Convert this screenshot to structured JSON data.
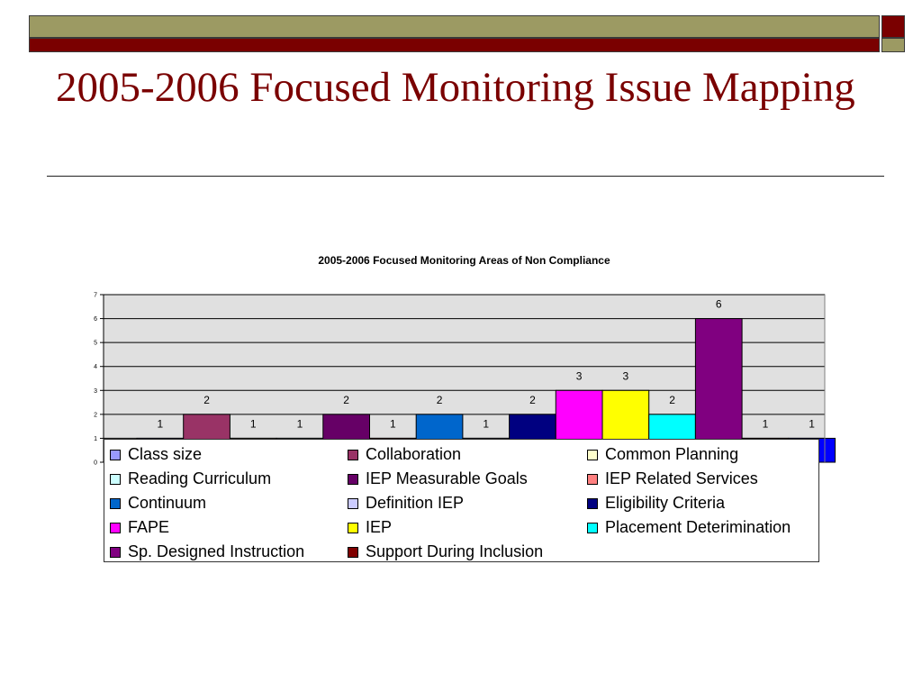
{
  "slide": {
    "title": "2005-2006 Focused Monitoring Issue Mapping"
  },
  "chart_data": {
    "type": "bar",
    "title": "2005-2006 Focused Monitoring Areas of Non Compliance",
    "xlabel": "",
    "ylabel": "",
    "ylim": [
      0,
      7
    ],
    "yticks": [
      0,
      1,
      2,
      3,
      4,
      5,
      6,
      7
    ],
    "grid": true,
    "legend_position": "bottom",
    "series": [
      {
        "name": "Class size",
        "value": 1,
        "color": "#9999ff"
      },
      {
        "name": "Collaboration",
        "value": 2,
        "color": "#993366"
      },
      {
        "name": "Common Planning",
        "value": 1,
        "color": "#ffffcc"
      },
      {
        "name": "Reading Curriculum",
        "value": 1,
        "color": "#ccffff"
      },
      {
        "name": "IEP Measurable Goals",
        "value": 2,
        "color": "#660066"
      },
      {
        "name": "IEP Related Services",
        "value": 1,
        "color": "#ff8080"
      },
      {
        "name": "Continuum",
        "value": 2,
        "color": "#0066cc"
      },
      {
        "name": "Definition IEP",
        "value": 1,
        "color": "#ccccff"
      },
      {
        "name": "Eligibility Criteria",
        "value": 2,
        "color": "#000080"
      },
      {
        "name": "FAPE",
        "value": 3,
        "color": "#ff00ff"
      },
      {
        "name": "IEP",
        "value": 3,
        "color": "#ffff00"
      },
      {
        "name": "Placement Deterimination",
        "value": 2,
        "color": "#00ffff"
      },
      {
        "name": "Sp. Designed Instruction",
        "value": 6,
        "color": "#800080"
      },
      {
        "name": "Support During Inclusion",
        "value": 1,
        "color": "#800000"
      },
      {
        "name": "",
        "value": 1,
        "color": "#0000ff"
      }
    ]
  }
}
